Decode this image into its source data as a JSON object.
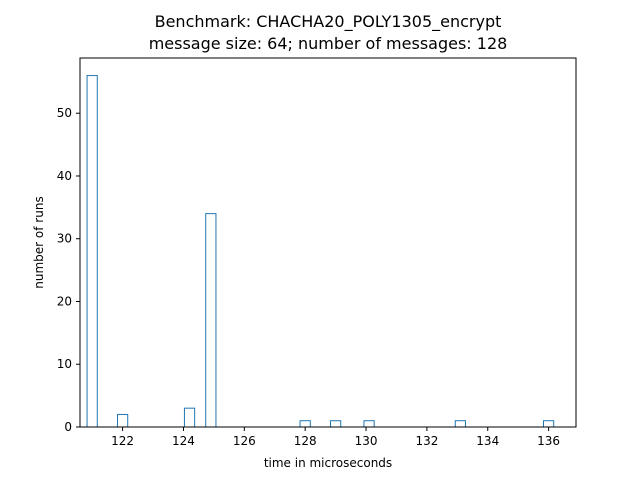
{
  "chart_data": {
    "type": "bar",
    "title": "Benchmark: CHACHA20_POLY1305_encrypt",
    "subtitle": "message size: 64; number of messages: 128",
    "xlabel": "time in microseconds",
    "ylabel": "number of runs",
    "x": [
      121.0,
      122.0,
      124.2,
      124.9,
      128.0,
      129.0,
      130.1,
      133.1,
      136.0
    ],
    "values": [
      56,
      2,
      3,
      34,
      1,
      1,
      1,
      1,
      1
    ],
    "xlim": [
      120.6,
      136.9
    ],
    "ylim": [
      0,
      58.8
    ],
    "xticks": [
      "122",
      "124",
      "126",
      "128",
      "130",
      "132",
      "134",
      "136"
    ],
    "yticks": [
      "0",
      "10",
      "20",
      "30",
      "40",
      "50"
    ],
    "grid": false,
    "bar_style": "outline",
    "color": "#1f77b4"
  }
}
